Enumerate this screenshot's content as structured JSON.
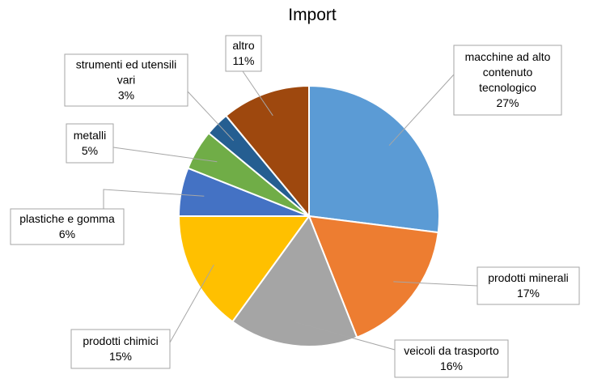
{
  "chart_data": {
    "type": "pie",
    "title": "Import",
    "start_angle_deg": 0,
    "direction": "clockwise",
    "legend": "none",
    "slices": [
      {
        "label_lines": [
          "macchine ad alto",
          "contenuto",
          "tecnologico"
        ],
        "value": 27,
        "value_label": "27%",
        "color": "#5B9BD5"
      },
      {
        "label_lines": [
          "prodotti minerali"
        ],
        "value": 17,
        "value_label": "17%",
        "color": "#ED7D31"
      },
      {
        "label_lines": [
          "veicoli da trasporto"
        ],
        "value": 16,
        "value_label": "16%",
        "color": "#A5A5A5"
      },
      {
        "label_lines": [
          "prodotti chimici"
        ],
        "value": 15,
        "value_label": "15%",
        "color": "#FFC000"
      },
      {
        "label_lines": [
          "plastiche e gomma"
        ],
        "value": 6,
        "value_label": "6%",
        "color": "#4472C4"
      },
      {
        "label_lines": [
          "metalli"
        ],
        "value": 5,
        "value_label": "5%",
        "color": "#70AD47"
      },
      {
        "label_lines": [
          "strumenti ed utensili",
          "vari"
        ],
        "value": 3,
        "value_label": "3%",
        "color": "#255E91"
      },
      {
        "label_lines": [
          "altro"
        ],
        "value": 11,
        "value_label": "11%",
        "color": "#9E480E"
      }
    ]
  }
}
